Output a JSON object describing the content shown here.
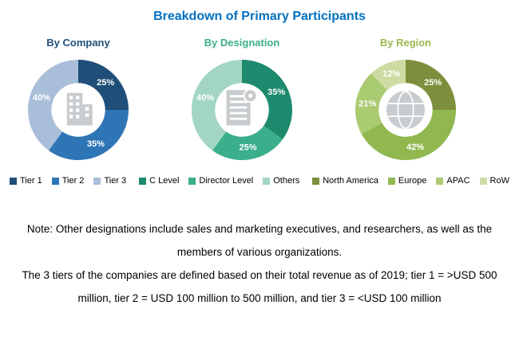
{
  "title": "Breakdown of Primary Participants",
  "accent_color": "#0070C0",
  "icon_color": "#C8CCCE",
  "chart_data": [
    {
      "type": "pie",
      "donut": true,
      "title": "By Company",
      "title_color": "#1F4E79",
      "icon": "building-icon",
      "legend_position": "bottom",
      "series": [
        {
          "name": "Tier 1",
          "value": 25,
          "color": "#1F4E79"
        },
        {
          "name": "Tier 2",
          "value": 35,
          "color": "#2E75B6"
        },
        {
          "name": "Tier 3",
          "value": 40,
          "color": "#A8BED9"
        }
      ]
    },
    {
      "type": "pie",
      "donut": true,
      "title": "By Designation",
      "title_color": "#3BAE8C",
      "icon": "document-icon",
      "legend_position": "bottom",
      "series": [
        {
          "name": "C Level",
          "value": 35,
          "color": "#1D8A6D"
        },
        {
          "name": "Director Level",
          "value": 25,
          "color": "#3BAE8C"
        },
        {
          "name": "Others",
          "value": 40,
          "color": "#A3D6C2"
        }
      ]
    },
    {
      "type": "pie",
      "donut": true,
      "title": "By Region",
      "title_color": "#9BB850",
      "icon": "globe-icon",
      "legend_position": "bottom",
      "series": [
        {
          "name": "North America",
          "value": 25,
          "color": "#7D8F3C"
        },
        {
          "name": "Europe",
          "value": 42,
          "color": "#90B84F"
        },
        {
          "name": "APAC",
          "value": 21,
          "color": "#ABCB72"
        },
        {
          "name": "RoW",
          "value": 12,
          "color": "#CDDCA3"
        }
      ]
    }
  ],
  "notes": [
    "Note: Other designations include sales and marketing executives, and researchers, as well as the members of various organizations.",
    "The 3 tiers of the companies are defined based on their total revenue as of 2019; tier 1 = >USD 500 million, tier 2 = USD 100 million to 500 million, and tier 3 = <USD 100 million"
  ]
}
